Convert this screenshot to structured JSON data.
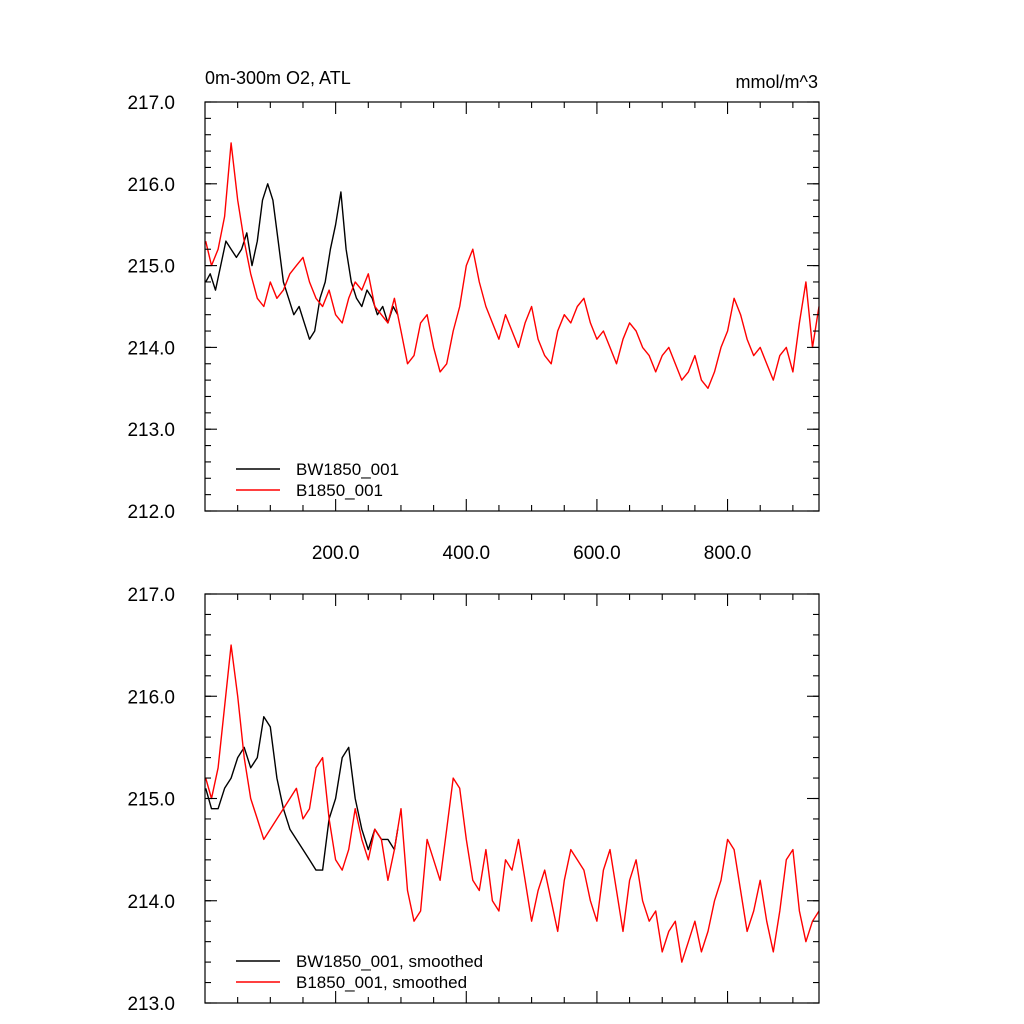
{
  "colors": {
    "black_series": "#000000",
    "red_series": "#ff0000",
    "frame": "#000000"
  },
  "chart_data": [
    {
      "type": "line",
      "title": "0m-300m O2, ATL",
      "units": "mmol/m^3",
      "xlim": [
        0,
        940
      ],
      "ylim": [
        212.0,
        217.0
      ],
      "xticks": [
        200,
        400,
        600,
        800
      ],
      "xtick_labels": [
        "200.0",
        "400.0",
        "600.0",
        "800.0"
      ],
      "yticks": [
        212,
        213,
        214,
        215,
        216,
        217
      ],
      "ytick_labels": [
        "212.0",
        "213.0",
        "214.0",
        "215.0",
        "216.0",
        "217.0"
      ],
      "grid": false,
      "legend_position": "bottom-left",
      "series": [
        {
          "name": "BW1850_001",
          "color": "#000000",
          "x": [
            1,
            8,
            16,
            24,
            32,
            40,
            48,
            56,
            64,
            72,
            80,
            88,
            96,
            104,
            112,
            120,
            128,
            136,
            144,
            152,
            160,
            168,
            176,
            184,
            192,
            200,
            208,
            216,
            224,
            232,
            240,
            248,
            256,
            264,
            272,
            280,
            288,
            295
          ],
          "y": [
            214.8,
            214.9,
            214.7,
            215.0,
            215.3,
            215.2,
            215.1,
            215.2,
            215.4,
            215.0,
            215.3,
            215.8,
            216.0,
            215.8,
            215.3,
            214.8,
            214.6,
            214.4,
            214.5,
            214.3,
            214.1,
            214.2,
            214.6,
            214.8,
            215.2,
            215.5,
            215.9,
            215.2,
            214.8,
            214.6,
            214.5,
            214.7,
            214.6,
            214.4,
            214.5,
            214.3,
            214.5,
            214.4
          ]
        },
        {
          "name": "B1850_001",
          "color": "#ff0000",
          "x": [
            1,
            10,
            20,
            30,
            40,
            50,
            60,
            70,
            80,
            90,
            100,
            110,
            120,
            130,
            140,
            150,
            160,
            170,
            180,
            190,
            200,
            210,
            220,
            230,
            240,
            250,
            260,
            270,
            280,
            290,
            300,
            310,
            320,
            330,
            340,
            350,
            360,
            370,
            380,
            390,
            400,
            410,
            420,
            430,
            440,
            450,
            460,
            470,
            480,
            490,
            500,
            510,
            520,
            530,
            540,
            550,
            560,
            570,
            580,
            590,
            600,
            610,
            620,
            630,
            640,
            650,
            660,
            670,
            680,
            690,
            700,
            710,
            720,
            730,
            740,
            750,
            760,
            770,
            780,
            790,
            800,
            810,
            820,
            830,
            840,
            850,
            860,
            870,
            880,
            890,
            900,
            910,
            920,
            930,
            940
          ],
          "y": [
            215.3,
            215.0,
            215.2,
            215.6,
            216.5,
            215.8,
            215.3,
            214.9,
            214.6,
            214.5,
            214.8,
            214.6,
            214.7,
            214.9,
            215.0,
            215.1,
            214.8,
            214.6,
            214.5,
            214.7,
            214.4,
            214.3,
            214.6,
            214.8,
            214.7,
            214.9,
            214.5,
            214.4,
            214.3,
            214.6,
            214.2,
            213.8,
            213.9,
            214.3,
            214.4,
            214.0,
            213.7,
            213.8,
            214.2,
            214.5,
            215.0,
            215.2,
            214.8,
            214.5,
            214.3,
            214.1,
            214.4,
            214.2,
            214.0,
            214.3,
            214.5,
            214.1,
            213.9,
            213.8,
            214.2,
            214.4,
            214.3,
            214.5,
            214.6,
            214.3,
            214.1,
            214.2,
            214.0,
            213.8,
            214.1,
            214.3,
            214.2,
            214.0,
            213.9,
            213.7,
            213.9,
            214.0,
            213.8,
            213.6,
            213.7,
            213.9,
            213.6,
            213.5,
            213.7,
            214.0,
            214.2,
            214.6,
            214.4,
            214.1,
            213.9,
            214.0,
            213.8,
            213.6,
            213.9,
            214.0,
            213.7,
            214.3,
            214.8,
            214.0,
            214.5
          ]
        }
      ]
    },
    {
      "type": "line",
      "xlim": [
        0,
        940
      ],
      "ylim": [
        213.0,
        217.0
      ],
      "yticks": [
        213,
        214,
        215,
        216,
        217
      ],
      "ytick_labels": [
        "213.0",
        "214.0",
        "215.0",
        "216.0",
        "217.0"
      ],
      "grid": false,
      "legend_position": "bottom-left",
      "series": [
        {
          "name": "BW1850_001, smoothed",
          "color": "#000000",
          "x": [
            1,
            10,
            20,
            30,
            40,
            50,
            60,
            70,
            80,
            90,
            100,
            110,
            120,
            130,
            140,
            150,
            160,
            170,
            180,
            190,
            200,
            210,
            220,
            230,
            240,
            250,
            260,
            270,
            280,
            290,
            295
          ],
          "y": [
            215.1,
            214.9,
            214.9,
            215.1,
            215.2,
            215.4,
            215.5,
            215.3,
            215.4,
            215.8,
            215.7,
            215.2,
            214.9,
            214.7,
            214.6,
            214.5,
            214.4,
            214.3,
            214.3,
            214.8,
            215.0,
            215.4,
            215.5,
            215.0,
            214.7,
            214.5,
            214.7,
            214.6,
            214.6,
            214.5,
            214.7
          ]
        },
        {
          "name": "B1850_001, smoothed",
          "color": "#ff0000",
          "x": [
            1,
            10,
            20,
            30,
            40,
            50,
            60,
            70,
            80,
            90,
            100,
            110,
            120,
            130,
            140,
            150,
            160,
            170,
            180,
            190,
            200,
            210,
            220,
            230,
            240,
            250,
            260,
            270,
            280,
            290,
            300,
            310,
            320,
            330,
            340,
            350,
            360,
            370,
            380,
            390,
            400,
            410,
            420,
            430,
            440,
            450,
            460,
            470,
            480,
            490,
            500,
            510,
            520,
            530,
            540,
            550,
            560,
            570,
            580,
            590,
            600,
            610,
            620,
            630,
            640,
            650,
            660,
            670,
            680,
            690,
            700,
            710,
            720,
            730,
            740,
            750,
            760,
            770,
            780,
            790,
            800,
            810,
            820,
            830,
            840,
            850,
            860,
            870,
            880,
            890,
            900,
            910,
            920,
            930,
            940
          ],
          "y": [
            215.2,
            215.0,
            215.3,
            215.9,
            216.5,
            216.0,
            215.4,
            215.0,
            214.8,
            214.6,
            214.7,
            214.8,
            214.9,
            215.0,
            215.1,
            214.8,
            214.9,
            215.3,
            215.4,
            214.8,
            214.4,
            214.3,
            214.5,
            214.9,
            214.6,
            214.4,
            214.7,
            214.6,
            214.2,
            214.5,
            214.9,
            214.1,
            213.8,
            213.9,
            214.6,
            214.4,
            214.2,
            214.7,
            215.2,
            215.1,
            214.6,
            214.2,
            214.1,
            214.5,
            214.0,
            213.9,
            214.4,
            214.3,
            214.6,
            214.2,
            213.8,
            214.1,
            214.3,
            214.0,
            213.7,
            214.2,
            214.5,
            214.4,
            214.3,
            214.0,
            213.8,
            214.3,
            214.5,
            214.1,
            213.7,
            214.2,
            214.4,
            214.0,
            213.8,
            213.9,
            213.5,
            213.7,
            213.8,
            213.4,
            213.6,
            213.8,
            213.5,
            213.7,
            214.0,
            214.2,
            214.6,
            214.5,
            214.1,
            213.7,
            213.9,
            214.2,
            213.8,
            213.5,
            213.9,
            214.4,
            214.5,
            213.9,
            213.6,
            213.8,
            213.9
          ]
        }
      ]
    }
  ]
}
